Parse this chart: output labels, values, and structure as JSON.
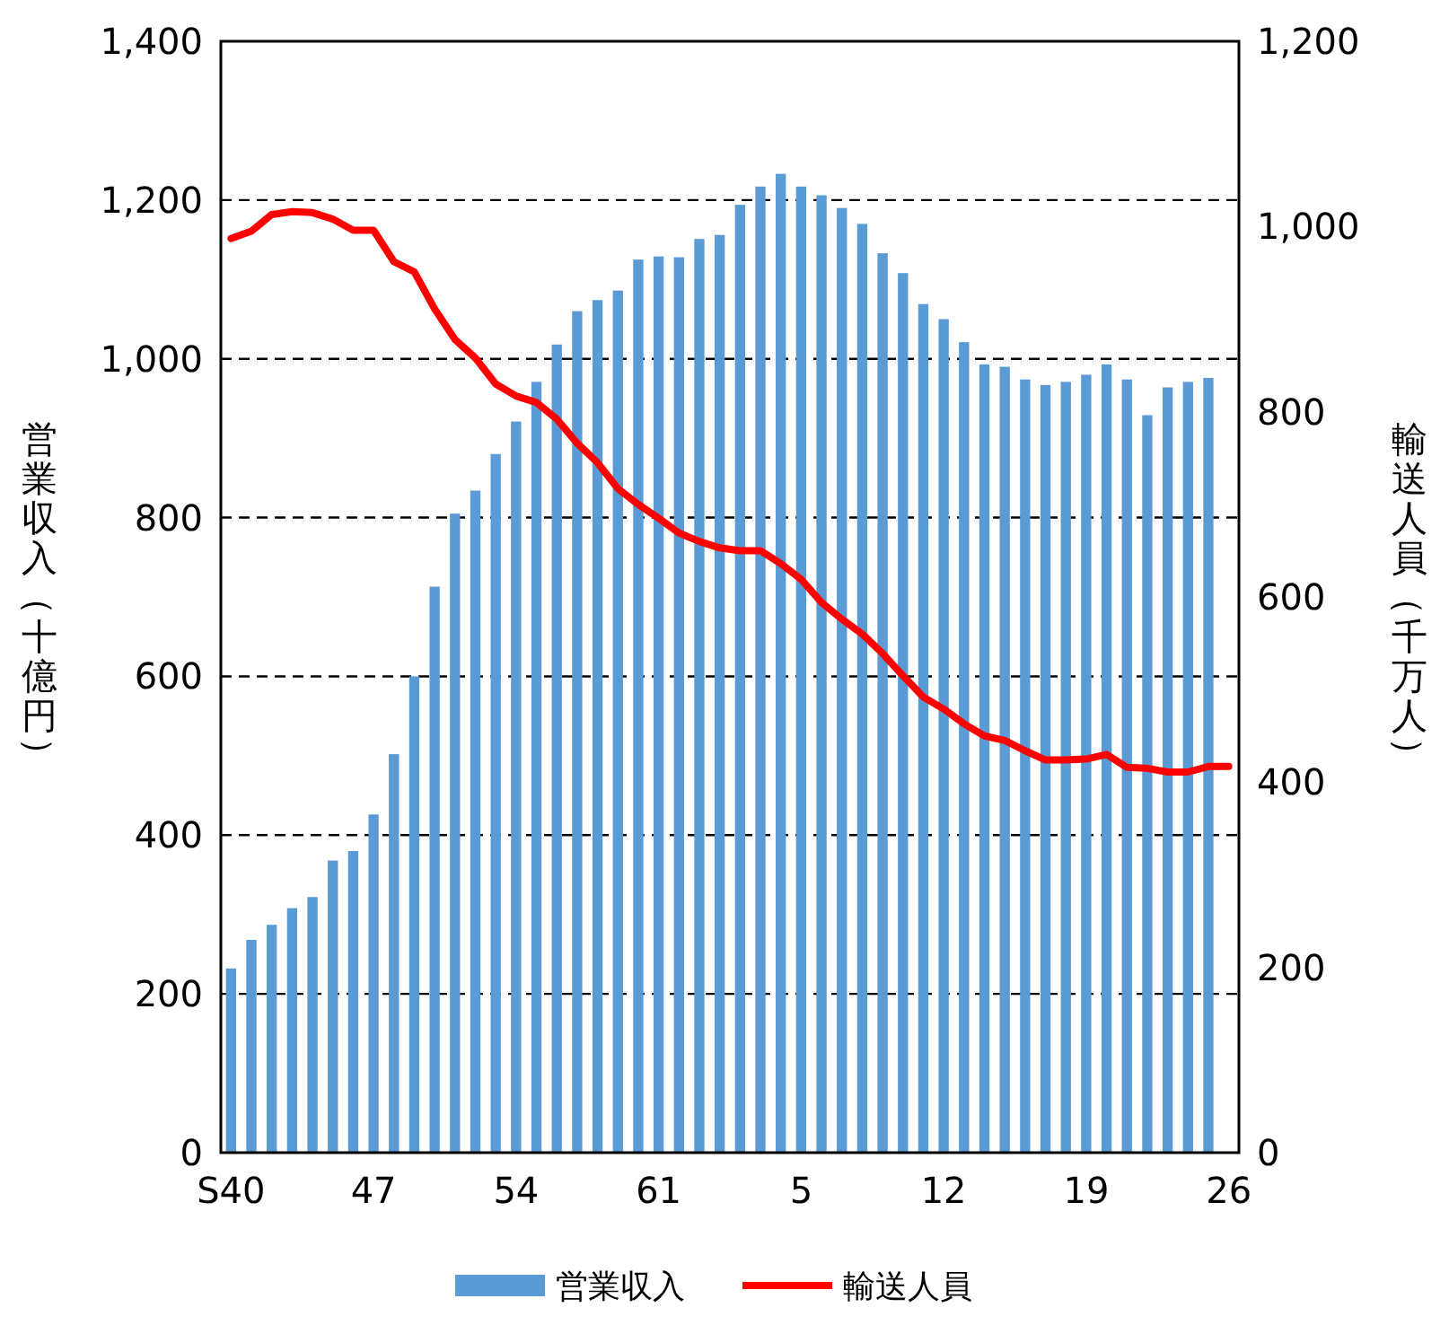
{
  "chart_data": {
    "type": "bar",
    "ylabel": "営業収入（十億円）",
    "y2label": "輸送人員（千万人）",
    "categories": [
      "S40",
      null,
      null,
      null,
      null,
      null,
      null,
      "47",
      null,
      null,
      null,
      null,
      null,
      null,
      "54",
      null,
      null,
      null,
      null,
      null,
      null,
      "61",
      null,
      null,
      null,
      null,
      null,
      null,
      "5",
      null,
      null,
      null,
      null,
      null,
      null,
      "12",
      null,
      null,
      null,
      null,
      null,
      null,
      "19",
      null,
      null,
      null,
      null,
      null,
      null,
      "26"
    ],
    "series": [
      {
        "name": "営業収入",
        "color": "#5b9bd5",
        "values": [
          232,
          268,
          287,
          308,
          322,
          368,
          380,
          426,
          502,
          600,
          713,
          805,
          834,
          880,
          921,
          971,
          1018,
          1060,
          1074,
          1086,
          1125,
          1129,
          1128,
          1151,
          1156,
          1194,
          1217,
          1233,
          1217,
          1206,
          1190,
          1170,
          1133,
          1108,
          1069,
          1050,
          1021,
          993,
          990,
          974,
          967,
          971,
          980,
          993,
          974,
          929,
          964,
          971,
          976,
          null
        ]
      },
      {
        "name": "輸送人員",
        "type": "line",
        "axis": "y2",
        "color": "#ff0000",
        "values": [
          987,
          995,
          1013,
          1016,
          1015,
          1008,
          996,
          996,
          962,
          951,
          911,
          878,
          858,
          830,
          817,
          810,
          792,
          766,
          745,
          717,
          700,
          685,
          669,
          660,
          653,
          650,
          650,
          636,
          619,
          594,
          576,
          560,
          539,
          515,
          492,
          479,
          463,
          450,
          445,
          434,
          424,
          424,
          425,
          430,
          416,
          415,
          411,
          411,
          417,
          417
        ]
      }
    ],
    "ylim": [
      0,
      1400
    ],
    "yticks": [
      0,
      200,
      400,
      600,
      800,
      {
        "value": 1000,
        "label": "1,000"
      },
      {
        "value": 1200,
        "label": "1,200"
      },
      {
        "value": 1400,
        "label": "1,400"
      }
    ],
    "y2lim": [
      0,
      1200
    ],
    "y2ticks": [
      0,
      200,
      400,
      600,
      800,
      {
        "value": 1000,
        "label": "1,000"
      },
      {
        "value": 1200,
        "label": "1,200"
      }
    ],
    "grid": "y",
    "legend": "bottom",
    "marker": "none",
    "line_style": "solid"
  }
}
